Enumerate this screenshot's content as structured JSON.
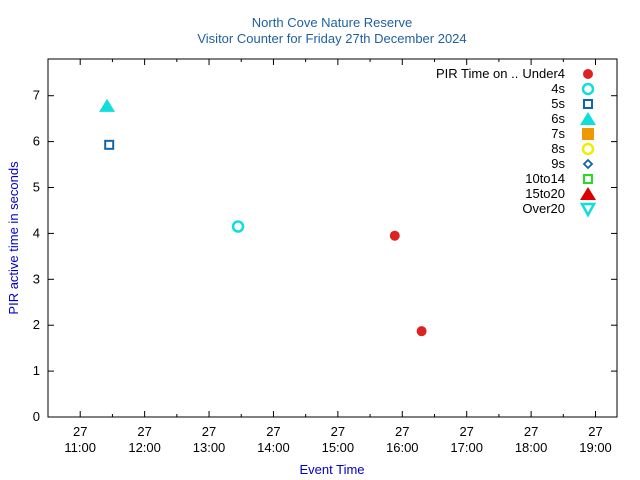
{
  "chart_data": {
    "type": "scatter",
    "title": "North Cove Nature Reserve",
    "subtitle": "Visitor Counter for Friday 27th December 2024",
    "xlabel": "Event Time",
    "ylabel": "PIR active time in seconds",
    "legend_title": "PIR Time on ..",
    "legend_position": "top-right",
    "grid": false,
    "ylim": [
      0,
      7.8
    ],
    "xlim": [
      "2024-12-27 10:30",
      "2024-12-27 19:20"
    ],
    "y_ticks": [
      "0",
      "1",
      "2",
      "3",
      "4",
      "5",
      "6",
      "7"
    ],
    "x_ticks": [
      {
        "day": "27",
        "time": "11:00"
      },
      {
        "day": "27",
        "time": "12:00"
      },
      {
        "day": "27",
        "time": "13:00"
      },
      {
        "day": "27",
        "time": "14:00"
      },
      {
        "day": "27",
        "time": "15:00"
      },
      {
        "day": "27",
        "time": "16:00"
      },
      {
        "day": "27",
        "time": "17:00"
      },
      {
        "day": "27",
        "time": "18:00"
      },
      {
        "day": "27",
        "time": "19:00"
      }
    ],
    "series": [
      {
        "name": "Under4",
        "marker": "circle-filled",
        "color": "#dd2222",
        "points": [
          {
            "x": "2024-12-27 15:53",
            "y": 3.95
          },
          {
            "x": "2024-12-27 16:18",
            "y": 1.87
          }
        ]
      },
      {
        "name": "4s",
        "marker": "circle-open",
        "color": "#11dddd",
        "points": [
          {
            "x": "2024-12-27 13:27",
            "y": 4.15
          }
        ]
      },
      {
        "name": "5s",
        "marker": "square-open",
        "color": "#1166aa",
        "points": [
          {
            "x": "2024-12-27 11:27",
            "y": 5.93
          }
        ]
      },
      {
        "name": "6s",
        "marker": "triangle-up-filled",
        "color": "#11dddd",
        "points": [
          {
            "x": "2024-12-27 11:25",
            "y": 6.78
          }
        ]
      },
      {
        "name": "7s",
        "marker": "square-filled",
        "color": "#ee9900",
        "points": []
      },
      {
        "name": "8s",
        "marker": "circle-open",
        "color": "#eeee00",
        "points": []
      },
      {
        "name": "9s",
        "marker": "diamond-open",
        "color": "#1166aa",
        "points": []
      },
      {
        "name": "10to14",
        "marker": "square-open",
        "color": "#22dd22",
        "points": []
      },
      {
        "name": "15to20",
        "marker": "triangle-up-filled",
        "color": "#dd0000",
        "points": []
      },
      {
        "name": "Over20",
        "marker": "triangle-down-open",
        "color": "#11dddd",
        "points": []
      }
    ]
  }
}
